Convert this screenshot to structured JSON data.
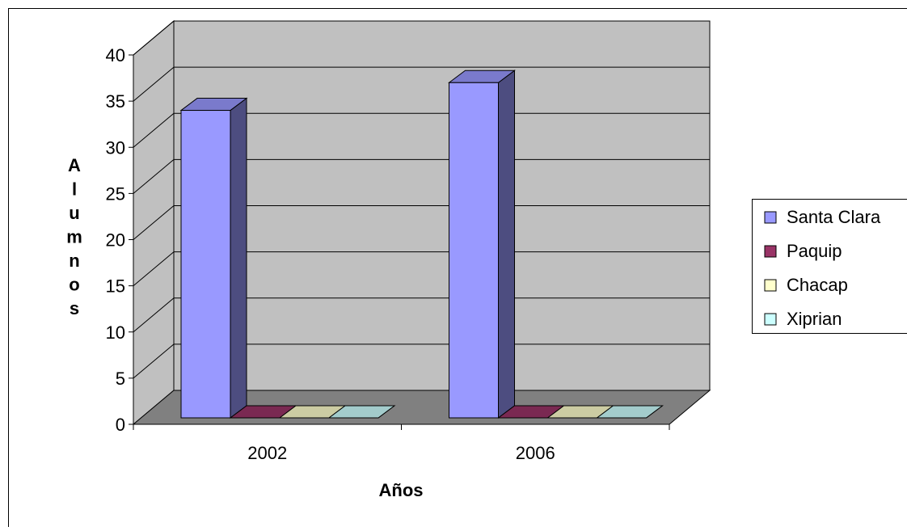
{
  "chart_data": {
    "type": "bar",
    "title": "",
    "xlabel": "Años",
    "ylabel": "Alumnos",
    "categories": [
      "2002",
      "2006"
    ],
    "series": [
      {
        "name": "Santa Clara",
        "values": [
          34,
          37
        ]
      },
      {
        "name": "Paquip",
        "values": [
          0,
          0
        ]
      },
      {
        "name": "Chacap",
        "values": [
          0,
          0
        ]
      },
      {
        "name": "Xiprian",
        "values": [
          0,
          0
        ]
      }
    ],
    "ylim": [
      0,
      40
    ],
    "yticks": [
      "0",
      "5",
      "10",
      "15",
      "20",
      "25",
      "30",
      "35",
      "40"
    ],
    "grid": true,
    "legend_position": "right",
    "three_d": true,
    "colors": {
      "series": [
        "#9999ff",
        "#993366",
        "#ffffcc",
        "#ccffff"
      ],
      "wall": "#c0c0c0",
      "floor": "#808080",
      "gridline": "#000000"
    }
  }
}
